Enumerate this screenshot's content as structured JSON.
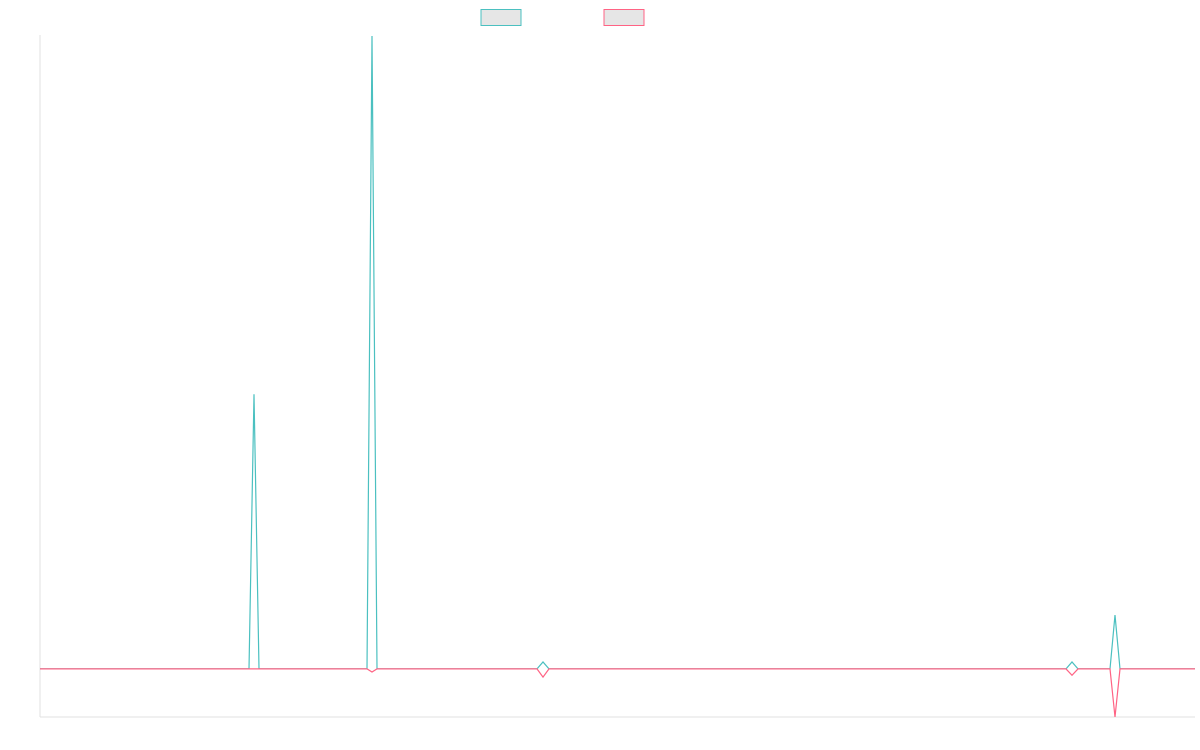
{
  "chart_data": {
    "type": "line",
    "x": [
      0,
      209,
      214,
      219,
      327,
      332,
      337,
      497,
      503,
      509,
      1026,
      1032,
      1038,
      1070,
      1075,
      1080,
      1155
    ],
    "xlim": [
      0,
      1155
    ],
    "ylim": [
      -7.6,
      100
    ],
    "series": [
      {
        "color": "#4bc0c0",
        "values": [
          0,
          0,
          43.4,
          0,
          0,
          100,
          0,
          0,
          1.1,
          0,
          0,
          1.1,
          0,
          0,
          8.5,
          0,
          0
        ]
      },
      {
        "color": "#ff6384",
        "values": [
          0,
          0,
          0,
          0,
          0,
          -0.5,
          0,
          0,
          -1.3,
          0,
          0,
          -1,
          0,
          0,
          -7.6,
          0,
          0
        ]
      }
    ]
  }
}
